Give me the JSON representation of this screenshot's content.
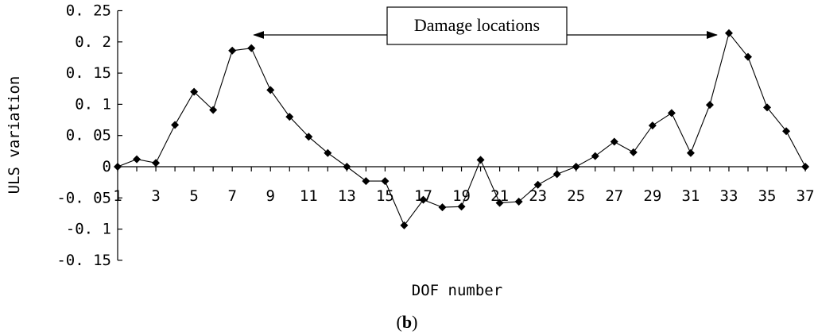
{
  "chart_data": {
    "type": "line",
    "title": "",
    "xlabel": "DOF number",
    "ylabel": "ULS variation",
    "panel_label": {
      "open": "(",
      "letter": "b",
      "close": ")"
    },
    "annotation": "Damage locations",
    "xlim": [
      1,
      37
    ],
    "ylim": [
      -0.15,
      0.25
    ],
    "grid": false,
    "legend": "none",
    "marker": "diamond",
    "y_ticks": [
      {
        "value": 0.25,
        "label": "0. 25"
      },
      {
        "value": 0.2,
        "label": "0. 2"
      },
      {
        "value": 0.15,
        "label": "0. 15"
      },
      {
        "value": 0.1,
        "label": "0. 1"
      },
      {
        "value": 0.05,
        "label": "0. 05"
      },
      {
        "value": 0,
        "label": "0"
      },
      {
        "value": -0.05,
        "label": "-0. 05"
      },
      {
        "value": -0.1,
        "label": "-0. 1"
      },
      {
        "value": -0.15,
        "label": "-0. 15"
      }
    ],
    "x_ticks": [
      {
        "value": 1,
        "label": "1"
      },
      {
        "value": 3,
        "label": "3"
      },
      {
        "value": 5,
        "label": "5"
      },
      {
        "value": 7,
        "label": "7"
      },
      {
        "value": 9,
        "label": "9"
      },
      {
        "value": 11,
        "label": "11"
      },
      {
        "value": 13,
        "label": "13"
      },
      {
        "value": 15,
        "label": "15"
      },
      {
        "value": 17,
        "label": "17"
      },
      {
        "value": 19,
        "label": "19"
      },
      {
        "value": 21,
        "label": "21"
      },
      {
        "value": 23,
        "label": "23"
      },
      {
        "value": 25,
        "label": "25"
      },
      {
        "value": 27,
        "label": "27"
      },
      {
        "value": 29,
        "label": "29"
      },
      {
        "value": 31,
        "label": "31"
      },
      {
        "value": 33,
        "label": "33"
      },
      {
        "value": 35,
        "label": "35"
      },
      {
        "value": 37,
        "label": "37"
      }
    ],
    "arrow_targets_x": [
      8,
      32
    ],
    "series": [
      {
        "x": [
          1,
          2,
          3,
          4,
          5,
          6,
          7,
          8,
          9,
          10,
          11,
          12,
          13,
          14,
          15,
          16,
          17,
          18,
          19,
          20,
          21,
          22,
          23,
          24,
          25,
          26,
          27,
          28,
          29,
          30,
          31,
          32,
          33,
          34,
          35,
          36,
          37
        ],
        "values": [
          0,
          0.012,
          0.006,
          0.067,
          0.12,
          0.091,
          0.186,
          0.19,
          0.123,
          0.08,
          0.048,
          0.022,
          0,
          -0.023,
          -0.023,
          -0.094,
          -0.053,
          -0.065,
          -0.064,
          0.011,
          -0.058,
          -0.056,
          -0.029,
          -0.012,
          0,
          0.017,
          0.04,
          0.023,
          0.066,
          0.086,
          0.022,
          0.099,
          0.214,
          0.176,
          0.095,
          0.057,
          0
        ]
      }
    ]
  }
}
